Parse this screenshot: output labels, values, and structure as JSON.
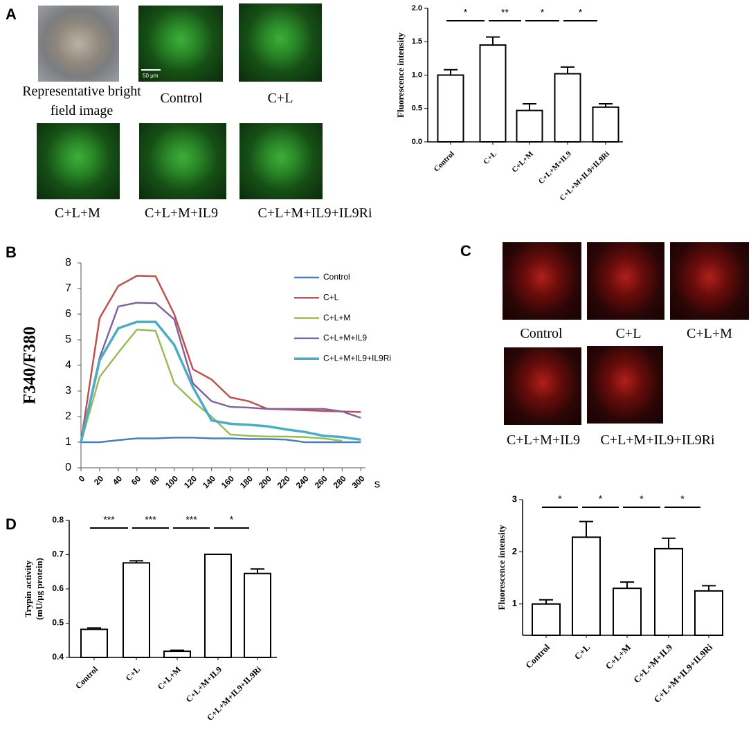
{
  "figure": {
    "panel_labels": [
      "A",
      "B",
      "C",
      "D"
    ],
    "panel_a": {
      "captions": [
        "Representative bright field image",
        "Control",
        "C+L",
        "C+L+M",
        "C+L+M+IL9",
        "C+L+M+IL9+IL9Ri"
      ],
      "scale_bar": "50 μm"
    },
    "panel_c": {
      "captions": [
        "Control",
        "C+L",
        "C+L+M",
        "C+L+M+IL9",
        "C+L+M+IL9+IL9Ri"
      ]
    }
  },
  "chart_data": [
    {
      "type": "bar",
      "ylabel": "Fluorescence intensity",
      "categories": [
        "Control",
        "C+L",
        "C+L+M",
        "C+L+M+IL9",
        "C+L+M+IL9+IL9Ri"
      ],
      "values": [
        1.0,
        1.45,
        0.47,
        1.02,
        0.52
      ],
      "errors": [
        0.08,
        0.12,
        0.1,
        0.1,
        0.05
      ],
      "color": "#ffffff",
      "ylim": [
        0,
        2
      ],
      "yticks": [
        {
          "value": 0,
          "label": "0.0"
        },
        {
          "value": 0.5,
          "label": "0.5"
        },
        {
          "value": 1,
          "label": "1.0"
        },
        {
          "value": 1.5,
          "label": "1.5"
        },
        {
          "value": 2,
          "label": "2.0"
        }
      ],
      "significance": [
        "*",
        "**",
        "*",
        "*"
      ]
    },
    {
      "type": "line",
      "ylabel": "F340/F380",
      "xlabel": "s",
      "legend": "upper right",
      "x": [
        0,
        20,
        40,
        60,
        80,
        100,
        120,
        140,
        160,
        180,
        200,
        220,
        240,
        260,
        280,
        300
      ],
      "series": [
        {
          "name": "Control",
          "color": "#4a7ebb",
          "values": [
            1,
            1,
            1.08,
            1.15,
            1.15,
            1.18,
            1.18,
            1.15,
            1.15,
            1.12,
            1.12,
            1.1,
            1.0,
            1.0,
            1.0,
            1.0
          ]
        },
        {
          "name": "C+L",
          "color": "#c0504d",
          "values": [
            1,
            5.85,
            7.1,
            7.5,
            7.48,
            6.0,
            3.85,
            3.45,
            2.75,
            2.6,
            2.3,
            2.28,
            2.25,
            2.22,
            2.2,
            2.18
          ]
        },
        {
          "name": "C+L+M",
          "color": "#9bbb59",
          "values": [
            1,
            3.55,
            4.5,
            5.4,
            5.35,
            3.3,
            2.6,
            2.0,
            1.3,
            1.25,
            1.22,
            1.22,
            1.2,
            1.15,
            1.05,
            null
          ]
        },
        {
          "name": "C+L+M+IL9",
          "color": "#8064a2",
          "values": [
            1,
            4.3,
            6.3,
            6.45,
            6.43,
            5.8,
            3.3,
            2.6,
            2.38,
            2.35,
            2.3,
            2.3,
            2.3,
            2.3,
            2.2,
            1.95
          ]
        },
        {
          "name": "C+L+M+IL9+IL9Ri",
          "color": "#4bacc6",
          "values": [
            1,
            4.2,
            5.45,
            5.7,
            5.7,
            4.8,
            3.15,
            1.85,
            1.72,
            1.68,
            1.62,
            1.5,
            1.4,
            1.25,
            1.2,
            1.1
          ]
        }
      ],
      "xlim": [
        0,
        305
      ],
      "xticks": [
        0,
        20,
        40,
        60,
        80,
        100,
        120,
        140,
        160,
        180,
        200,
        220,
        240,
        260,
        280,
        300
      ],
      "ylim": [
        0,
        8
      ],
      "yticks": [
        0,
        1,
        2,
        3,
        4,
        5,
        6,
        7,
        8
      ]
    },
    {
      "type": "bar",
      "ylabel": "Fluorescence intensity",
      "categories": [
        "Control",
        "C+L",
        "C+L+M",
        "C+L+M+IL9",
        "C+L+M+IL9+IL9Ri"
      ],
      "values": [
        1.0,
        2.28,
        1.3,
        2.06,
        1.25
      ],
      "errors": [
        0.08,
        0.3,
        0.12,
        0.2,
        0.1
      ],
      "color": "#ffffff",
      "ylim": [
        0.4,
        3
      ],
      "yticks": [
        1,
        2,
        3
      ],
      "significance": [
        "*",
        "*",
        "*",
        "*"
      ]
    },
    {
      "type": "bar",
      "ylabel": [
        "Trypin activity",
        "(mU/μg protein)"
      ],
      "categories": [
        "Control",
        "C+L",
        "C+L+M",
        "C+L+M+IL9",
        "C+L+M+IL9+IL9Ri"
      ],
      "values": [
        0.482,
        0.676,
        0.418,
        0.701,
        0.645
      ],
      "errors": [
        0.004,
        0.006,
        0.003,
        0.0,
        0.013
      ],
      "color": "#ffffff",
      "ylim": [
        0.4,
        0.8
      ],
      "yticks": [
        0.4,
        0.5,
        0.6,
        0.7,
        0.8
      ],
      "significance": [
        "***",
        "***",
        "***",
        "*"
      ]
    }
  ]
}
